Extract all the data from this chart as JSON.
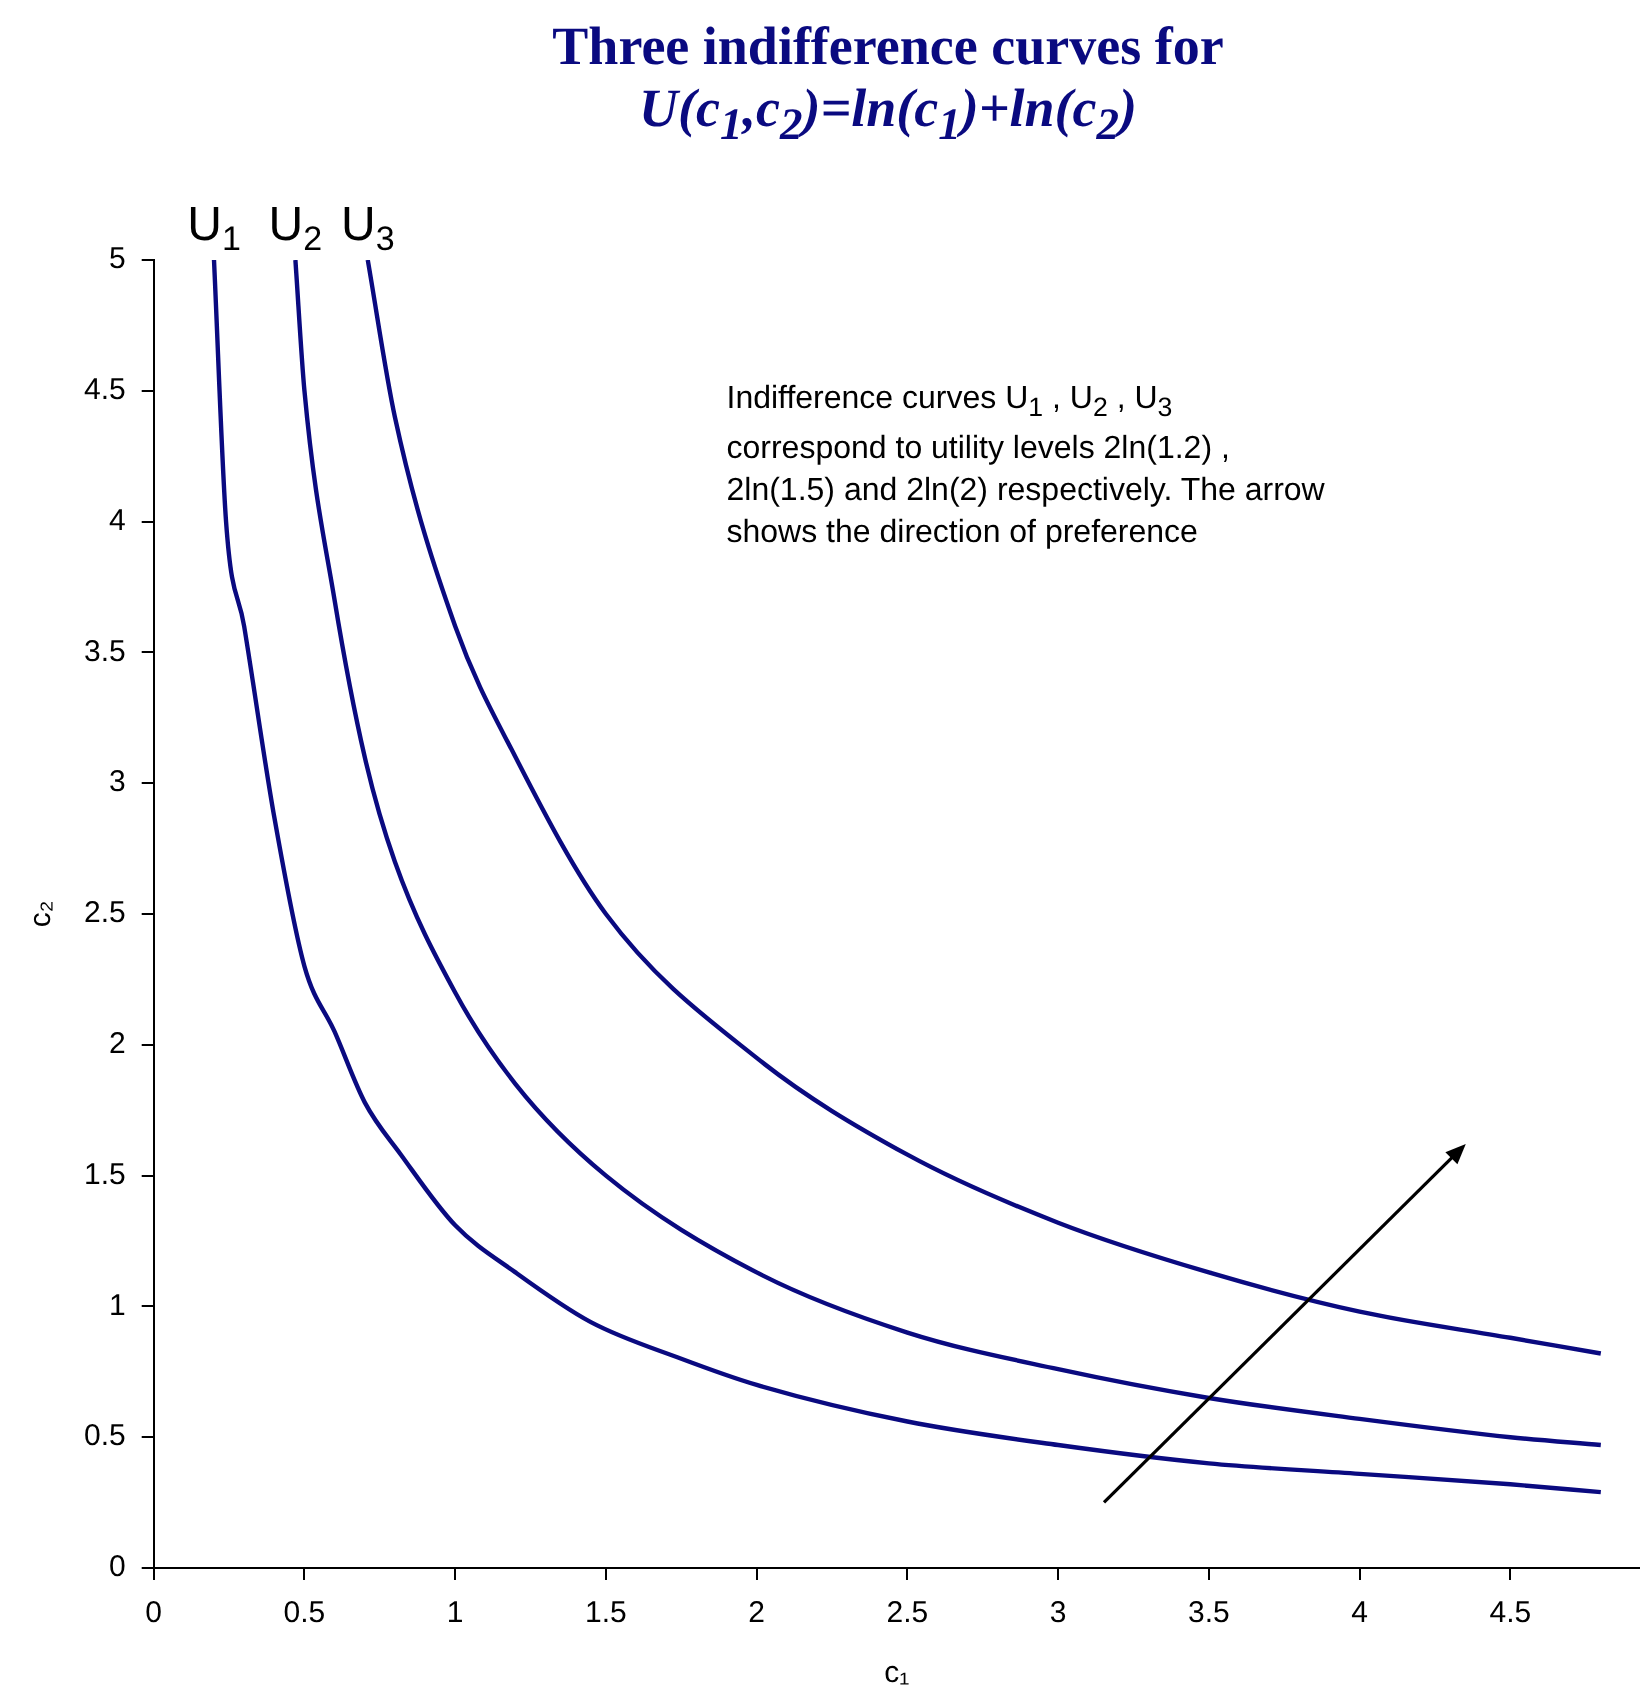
{
  "chart_data": {
    "type": "line",
    "title": "Three indifference curves for",
    "subtitle": "U(c$_{1}$,c$_{2}$)=ln(c$_{1}$)+ln(c$_{2}$)",
    "xlabel": "c₁",
    "ylabel": "c₂",
    "xlim": [
      0,
      4.93
    ],
    "xticks": [
      0,
      0.5,
      1,
      1.5,
      2,
      2.5,
      3,
      3.5,
      4,
      4.5
    ],
    "ylim": [
      0,
      5
    ],
    "yticks": [
      0,
      0.5,
      1,
      1.5,
      2,
      2.5,
      3,
      3.5,
      4,
      4.5,
      5
    ],
    "grid": false,
    "legend": false,
    "marker": "none",
    "line_style": "solid",
    "series": [
      {
        "name": "U$_{1}$",
        "color": "#0a0a80",
        "x": [
          0.2,
          0.24,
          0.3,
          0.4,
          0.5,
          0.6,
          0.7,
          0.82,
          1,
          1.2,
          1.45,
          1.75,
          2,
          2.5,
          3,
          3.5,
          4,
          4.5,
          4.8
        ],
        "values": [
          5,
          4,
          3.6,
          2.87,
          2.3,
          2.05,
          1.78,
          1.58,
          1.31,
          1.13,
          0.94,
          0.8,
          0.7,
          0.56,
          0.47,
          0.4,
          0.36,
          0.32,
          0.29
        ]
      },
      {
        "name": "U$_{2}$",
        "color": "#0a0a80",
        "x": [
          0.47,
          0.5,
          0.6,
          0.7,
          0.8,
          1,
          1.2,
          1.5,
          2,
          2.5,
          3,
          3.5,
          4,
          4.5,
          4.8
        ],
        "values": [
          5,
          4.5,
          3.7,
          3.1,
          2.7,
          2.2,
          1.85,
          1.5,
          1.13,
          0.9,
          0.76,
          0.65,
          0.57,
          0.5,
          0.47
        ]
      },
      {
        "name": "U$_{3}$",
        "color": "#0a0a80",
        "x": [
          0.71,
          0.8,
          1,
          1.2,
          1.5,
          2,
          2.5,
          3,
          3.5,
          4,
          4.5,
          4.8
        ],
        "values": [
          5,
          4.4,
          3.6,
          3.1,
          2.5,
          1.95,
          1.58,
          1.32,
          1.13,
          0.98,
          0.88,
          0.82
        ]
      }
    ],
    "annotations": [
      "Indifference curves U$_{1}$ , U$_{2}$ , U$_{3}$ correspond to utility levels 2ln(1.2) , 2ln(1.5) and 2ln(2) respectively. The arrow shows the direction of preference"
    ]
  }
}
